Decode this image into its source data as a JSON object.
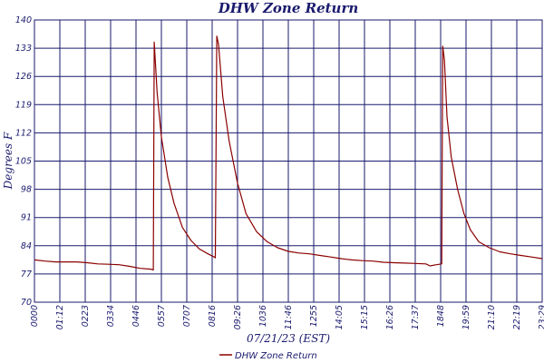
{
  "chart_data": {
    "type": "line",
    "title": "DHW Zone Return",
    "xlabel": "07/21/23 (EST)",
    "ylabel": "Degrees F",
    "ylim": [
      70,
      140
    ],
    "yticks": [
      "70",
      "77",
      "84",
      "91",
      "98",
      "105",
      "112",
      "119",
      "126",
      "133",
      "140"
    ],
    "xlim": [
      0,
      24
    ],
    "xticks": [
      "0000",
      "01:12",
      "0223",
      "0334",
      "0446",
      "0557",
      "0707",
      "0816",
      "09:26",
      "1036",
      "11:46",
      "1255",
      "14:05",
      "15:15",
      "16:26",
      "17:37",
      "1848",
      "19:59",
      "21:10",
      "22:19",
      "23:29"
    ],
    "grid": true,
    "legend": "bottom-center",
    "colors": {
      "series": "#8b0000",
      "grid": "#1a1a6e",
      "text": "#1a1a6e"
    },
    "series": [
      {
        "name": "DHW Zone Return",
        "x": [
          0,
          0.5,
          1,
          1.5,
          2,
          2.5,
          3,
          3.5,
          4,
          4.5,
          5,
          5.5,
          5.62,
          5.66,
          5.8,
          6,
          6.3,
          6.6,
          7,
          7.4,
          7.8,
          8.2,
          8.5,
          8.55,
          8.62,
          8.7,
          8.9,
          9.2,
          9.6,
          10,
          10.5,
          11,
          11.5,
          12,
          12.5,
          13,
          13.5,
          14,
          14.5,
          15,
          15.5,
          16,
          16.5,
          17,
          17.5,
          18,
          18.5,
          18.7,
          19,
          19.25,
          19.3,
          19.38,
          19.5,
          19.7,
          20,
          20.3,
          20.6,
          21,
          21.5,
          22,
          22.5,
          23,
          23.5,
          24
        ],
        "values": [
          80.5,
          80.2,
          80.0,
          80.0,
          80.0,
          79.8,
          79.5,
          79.4,
          79.3,
          78.9,
          78.4,
          78.2,
          78.0,
          134.5,
          122.0,
          111.0,
          101.0,
          94.5,
          88.5,
          85.3,
          83.2,
          82.0,
          81.2,
          81.0,
          136.0,
          134.0,
          121.0,
          110.0,
          99.5,
          92.0,
          87.5,
          85.0,
          83.5,
          82.6,
          82.2,
          82.0,
          81.6,
          81.2,
          80.8,
          80.5,
          80.3,
          80.2,
          79.9,
          79.8,
          79.7,
          79.6,
          79.5,
          79.0,
          79.3,
          79.5,
          133.5,
          130.0,
          116.0,
          106.0,
          98.0,
          92.0,
          88.0,
          85.0,
          83.5,
          82.5,
          82.0,
          81.6,
          81.2,
          80.8
        ]
      }
    ]
  }
}
